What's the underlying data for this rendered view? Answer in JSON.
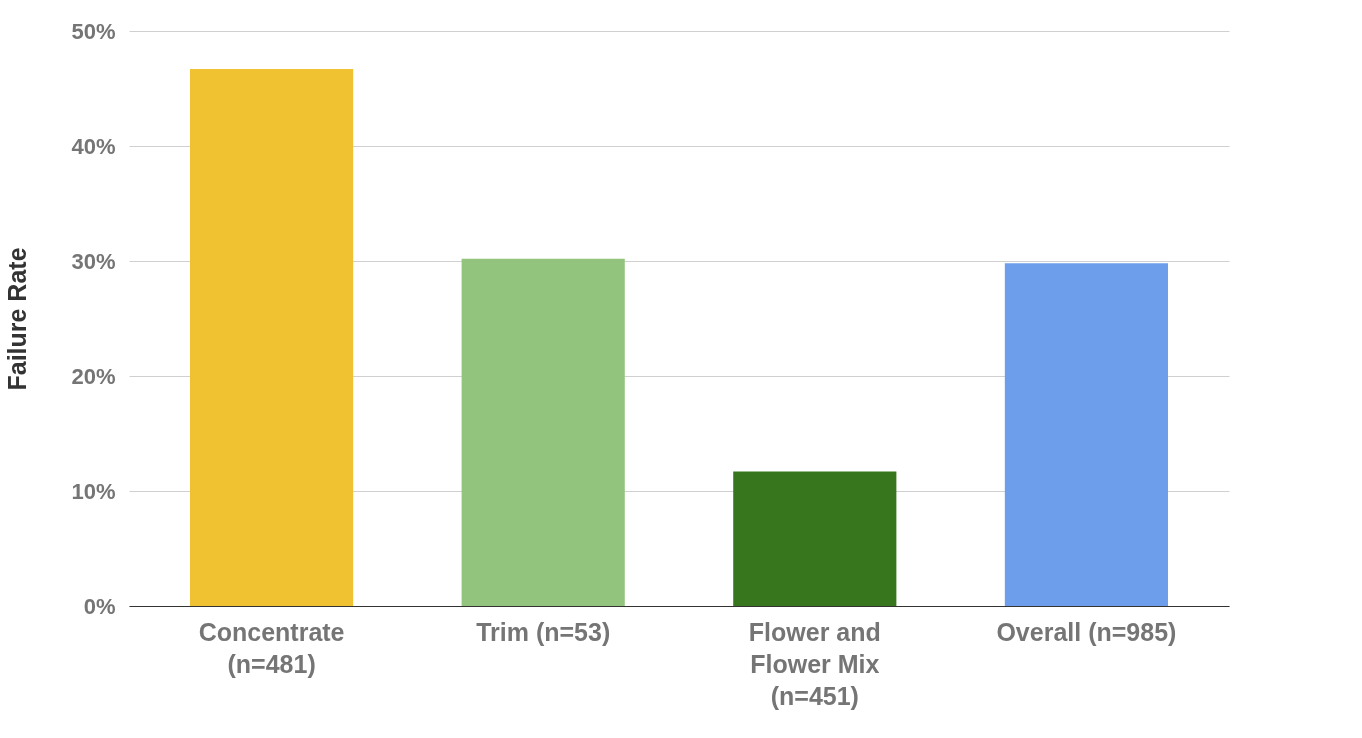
{
  "chart_data": {
    "type": "bar",
    "ylabel": "Failure Rate",
    "categories": [
      "Concentrate\n(n=481)",
      "Trim (n=53)",
      "Flower and\nFlower Mix\n(n=451)",
      "Overall (n=985)"
    ],
    "values": [
      46.7,
      30.2,
      11.7,
      29.8
    ],
    "colors": [
      "#f0c232",
      "#93c47d",
      "#38761d",
      "#6d9eeb"
    ],
    "ylim": [
      0,
      50
    ],
    "yticks": [
      {
        "value": 0,
        "label": "0%"
      },
      {
        "value": 10,
        "label": "10%"
      },
      {
        "value": 20,
        "label": "20%"
      },
      {
        "value": 30,
        "label": "30%"
      },
      {
        "value": 40,
        "label": "40%"
      },
      {
        "value": 50,
        "label": "50%"
      }
    ],
    "grid": "y"
  }
}
